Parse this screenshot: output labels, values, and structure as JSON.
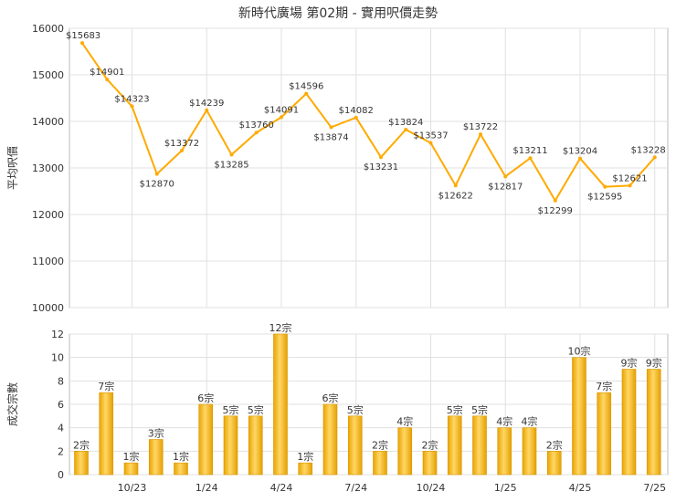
{
  "chart_data": [
    {
      "type": "line",
      "title": "新時代廣場 第02期 - 實用呎價走勢",
      "ylabel": "平均呎價",
      "ylim": [
        10000,
        16000
      ],
      "yticks": [
        10000,
        11000,
        12000,
        13000,
        14000,
        15000,
        16000
      ],
      "grid": true,
      "color": "#FFAA00",
      "points": [
        {
          "label": "$15683",
          "y": 15683
        },
        {
          "label": "$14901",
          "y": 14901
        },
        {
          "label": "$14323",
          "y": 14323
        },
        {
          "label": "$12870",
          "y": 12870
        },
        {
          "label": "$13372",
          "y": 13372
        },
        {
          "label": "$14239",
          "y": 14239
        },
        {
          "label": "$13285",
          "y": 13285
        },
        {
          "label": "$13760",
          "y": 13760
        },
        {
          "label": "$14091",
          "y": 14091
        },
        {
          "label": "$14596",
          "y": 14596
        },
        {
          "label": "$13874",
          "y": 13874
        },
        {
          "label": "$14082",
          "y": 14082
        },
        {
          "label": "$13231",
          "y": 13231
        },
        {
          "label": "$13824",
          "y": 13824
        },
        {
          "label": "$13537",
          "y": 13537
        },
        {
          "label": "$12622",
          "y": 12622
        },
        {
          "label": "$13722",
          "y": 13722
        },
        {
          "label": "$12817",
          "y": 12817
        },
        {
          "label": "$13211",
          "y": 13211
        },
        {
          "label": "$12299",
          "y": 12299
        },
        {
          "label": "$13204",
          "y": 13204
        },
        {
          "label": "$12595",
          "y": 12595
        },
        {
          "label": "$12621",
          "y": 12621
        },
        {
          "label": "$13228",
          "y": 13228
        }
      ]
    },
    {
      "type": "bar",
      "ylabel": "成交宗數",
      "ylim": [
        0,
        12
      ],
      "yticks": [
        0,
        2,
        4,
        6,
        8,
        10,
        12
      ],
      "grid": true,
      "color": "#F4B20A",
      "xticks": [
        {
          "label": "10/23",
          "index": 2
        },
        {
          "label": "1/24",
          "index": 5
        },
        {
          "label": "4/24",
          "index": 8
        },
        {
          "label": "7/24",
          "index": 11
        },
        {
          "label": "10/24",
          "index": 14
        },
        {
          "label": "1/25",
          "index": 17
        },
        {
          "label": "4/25",
          "index": 20
        },
        {
          "label": "7/25",
          "index": 23
        }
      ],
      "bars": [
        {
          "label": "2宗",
          "value": 2
        },
        {
          "label": "7宗",
          "value": 7
        },
        {
          "label": "1宗",
          "value": 1
        },
        {
          "label": "3宗",
          "value": 3
        },
        {
          "label": "1宗",
          "value": 1
        },
        {
          "label": "6宗",
          "value": 6
        },
        {
          "label": "5宗",
          "value": 5
        },
        {
          "label": "5宗",
          "value": 5
        },
        {
          "label": "12宗",
          "value": 12
        },
        {
          "label": "1宗",
          "value": 1
        },
        {
          "label": "6宗",
          "value": 6
        },
        {
          "label": "5宗",
          "value": 5
        },
        {
          "label": "2宗",
          "value": 2
        },
        {
          "label": "4宗",
          "value": 4
        },
        {
          "label": "2宗",
          "value": 2
        },
        {
          "label": "5宗",
          "value": 5
        },
        {
          "label": "5宗",
          "value": 5
        },
        {
          "label": "4宗",
          "value": 4
        },
        {
          "label": "4宗",
          "value": 4
        },
        {
          "label": "2宗",
          "value": 2
        },
        {
          "label": "10宗",
          "value": 10
        },
        {
          "label": "7宗",
          "value": 7
        },
        {
          "label": "9宗",
          "value": 9
        },
        {
          "label": "9宗",
          "value": 9
        }
      ]
    }
  ]
}
